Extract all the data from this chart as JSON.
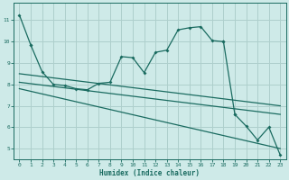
{
  "xlabel": "Humidex (Indice chaleur)",
  "background_color": "#ceeae8",
  "grid_color": "#aecfcc",
  "line_color": "#1a6b60",
  "xlim": [
    -0.5,
    23.5
  ],
  "ylim": [
    4.5,
    11.8
  ],
  "xticks": [
    0,
    1,
    2,
    3,
    4,
    5,
    6,
    7,
    8,
    9,
    10,
    11,
    12,
    13,
    14,
    15,
    16,
    17,
    18,
    19,
    20,
    21,
    22,
    23
  ],
  "yticks": [
    5,
    6,
    7,
    8,
    9,
    10,
    11
  ],
  "curve1_x": [
    0,
    1,
    1,
    2,
    3,
    4,
    5,
    6,
    7,
    8,
    9,
    10,
    11,
    12,
    13,
    14,
    15,
    16,
    17,
    18
  ],
  "curve1_y": [
    11.25,
    9.85,
    9.85,
    8.6,
    8.0,
    7.95,
    7.8,
    7.75,
    8.05,
    8.1,
    9.3,
    9.25,
    8.55,
    9.5,
    9.6,
    10.55,
    10.65,
    10.7,
    10.05,
    10.0
  ],
  "curve2_x": [
    19,
    20,
    21,
    22,
    23
  ],
  "curve2_y": [
    6.6,
    6.05,
    5.4,
    6.0,
    4.7
  ],
  "trend1_x": [
    0,
    23
  ],
  "trend1_y": [
    8.5,
    7.0
  ],
  "trend2_x": [
    0,
    23
  ],
  "trend2_y": [
    8.1,
    6.6
  ],
  "trend3_x": [
    0,
    23
  ],
  "trend3_y": [
    7.8,
    5.0
  ]
}
